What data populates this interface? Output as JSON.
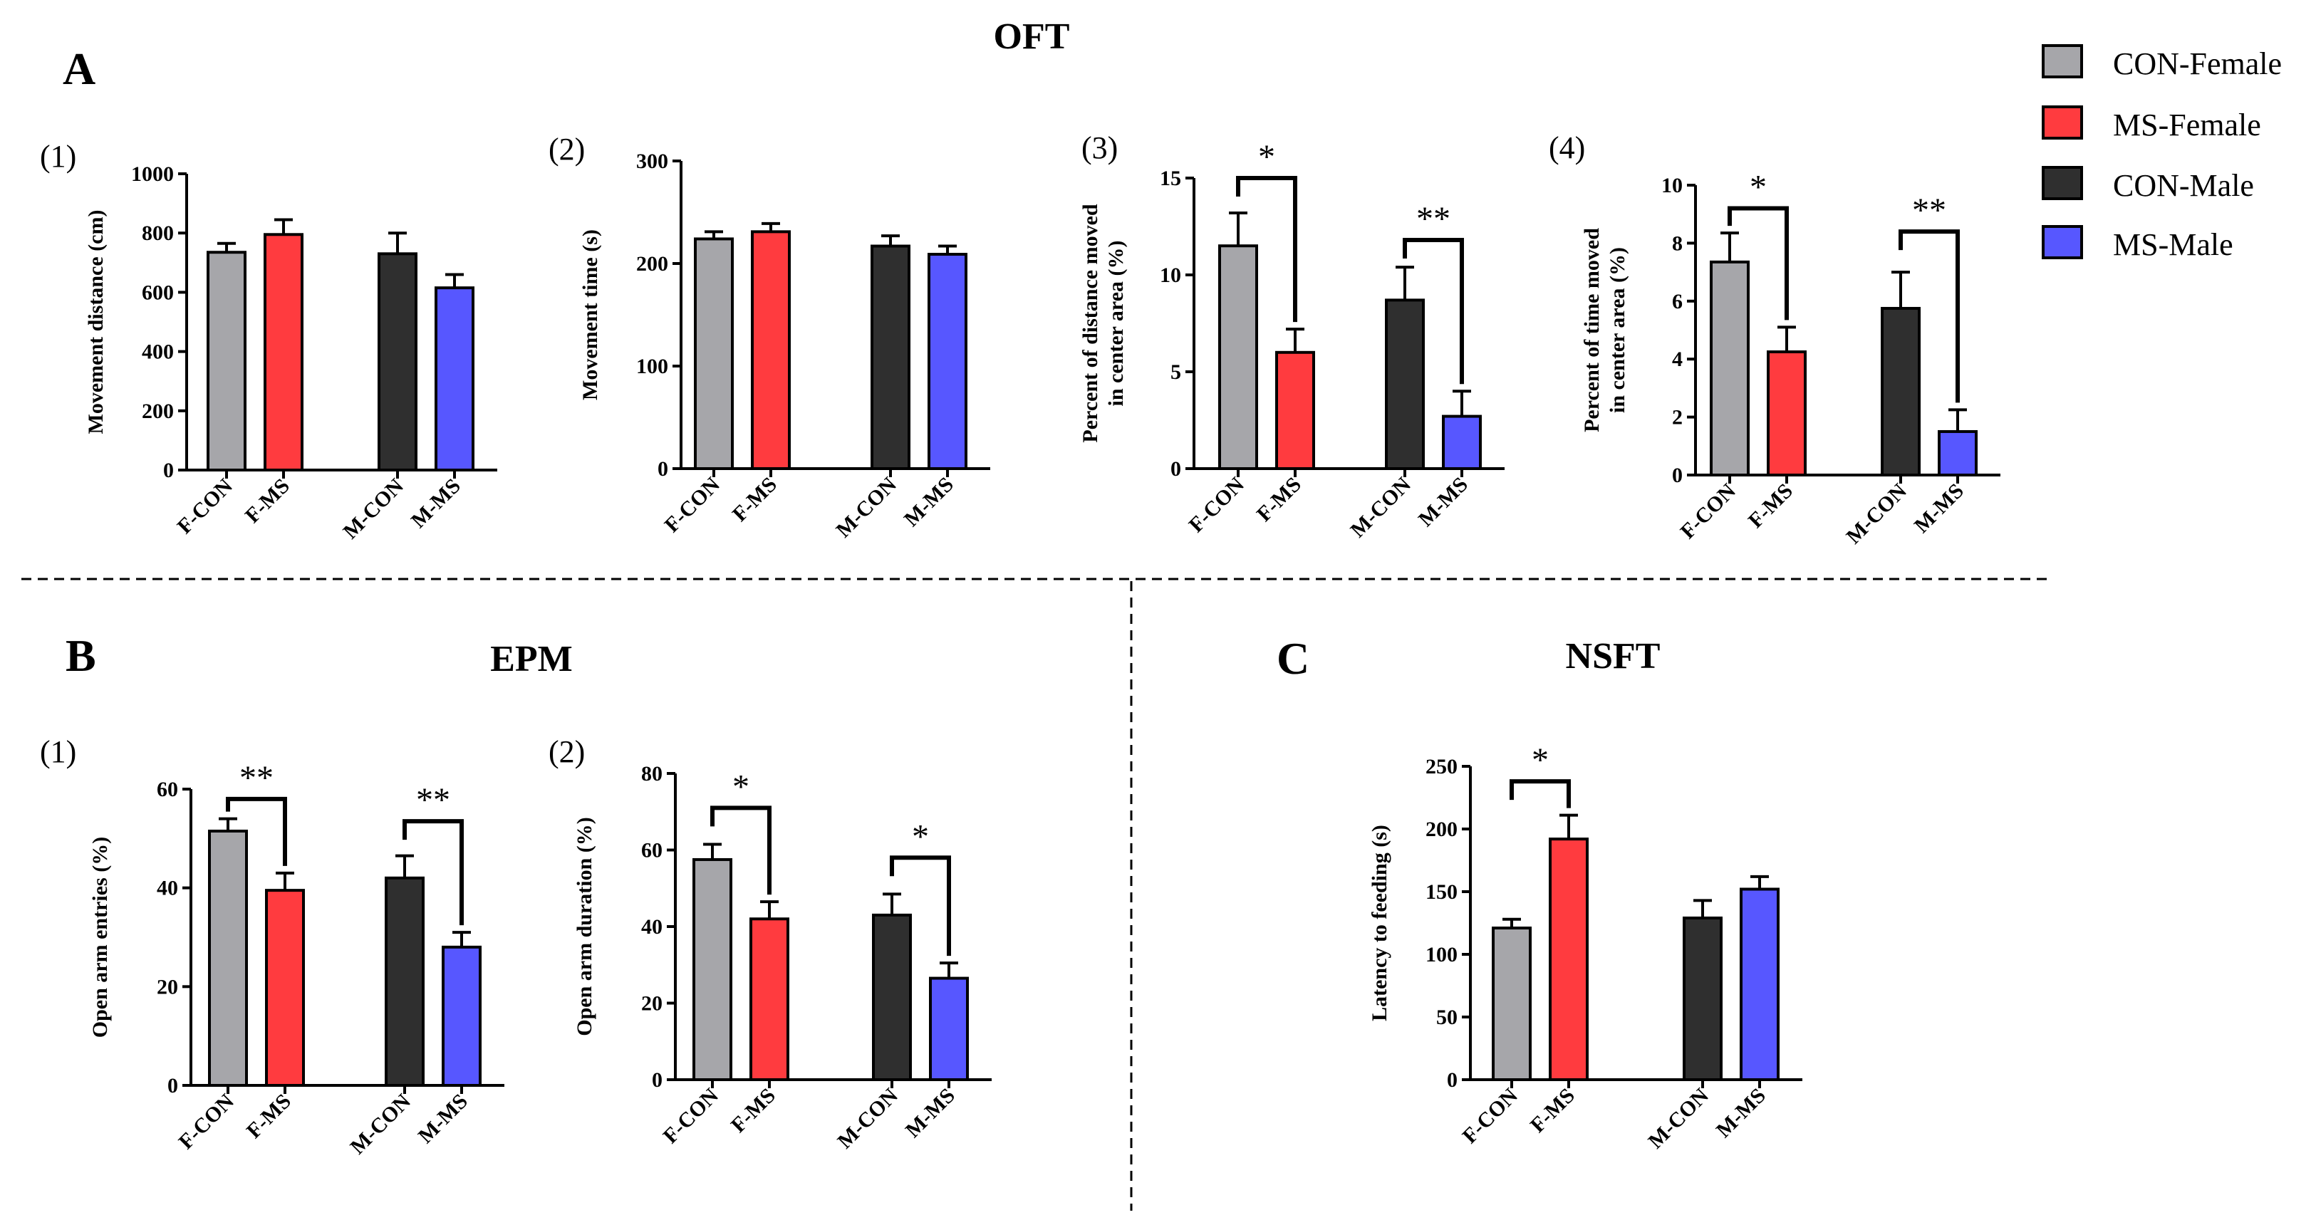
{
  "figure": {
    "sections": {
      "A": {
        "letter": "A",
        "title": "OFT"
      },
      "B": {
        "letter": "B",
        "title": "EPM"
      },
      "C": {
        "letter": "C",
        "title": "NSFT"
      }
    },
    "legend": [
      {
        "label": "CON-Female",
        "color": "#a6a6aa"
      },
      {
        "label": "MS-Female",
        "color": "#ff3b3f"
      },
      {
        "label": "CON-Male",
        "color": "#2f2f2f"
      },
      {
        "label": "MS-Male",
        "color": "#5757ff"
      }
    ]
  },
  "chart_data": [
    {
      "id": "oft1",
      "panel_label": "(1)",
      "type": "bar",
      "ylabel": [
        "Movement distance (cm)"
      ],
      "categories": [
        "F-CON",
        "F-MS",
        "M-CON",
        "M-MS"
      ],
      "values": [
        735,
        795,
        730,
        615
      ],
      "errors": [
        30,
        50,
        70,
        45
      ],
      "ylim": [
        0,
        1000
      ],
      "yticks": [
        0,
        200,
        400,
        600,
        800,
        1000
      ],
      "significance": []
    },
    {
      "id": "oft2",
      "panel_label": "(2)",
      "type": "bar",
      "ylabel": [
        "Movement time (s)"
      ],
      "categories": [
        "F-CON",
        "F-MS",
        "M-CON",
        "M-MS"
      ],
      "values": [
        224,
        231,
        217,
        209
      ],
      "errors": [
        7,
        8,
        10,
        8
      ],
      "ylim": [
        0,
        300
      ],
      "yticks": [
        0,
        100,
        200,
        300
      ],
      "significance": []
    },
    {
      "id": "oft3",
      "panel_label": "(3)",
      "type": "bar",
      "ylabel": [
        "Percent of distance moved",
        "in center area (%)"
      ],
      "categories": [
        "F-CON",
        "F-MS",
        "M-CON",
        "M-MS"
      ],
      "values": [
        11.5,
        6.0,
        8.7,
        2.7
      ],
      "errors": [
        1.7,
        1.2,
        1.7,
        1.3
      ],
      "ylim": [
        0,
        15
      ],
      "yticks": [
        0,
        5,
        10,
        15
      ],
      "significance": [
        {
          "from": 0,
          "to": 1,
          "y": 15.0,
          "label": "*"
        },
        {
          "from": 2,
          "to": 3,
          "y": 11.8,
          "label": "**"
        }
      ]
    },
    {
      "id": "oft4",
      "panel_label": "(4)",
      "type": "bar",
      "ylabel": [
        "Percent of time moved",
        "in center area (%)"
      ],
      "categories": [
        "F-CON",
        "F-MS",
        "M-CON",
        "M-MS"
      ],
      "values": [
        7.35,
        4.25,
        5.75,
        1.5
      ],
      "errors": [
        1.0,
        0.85,
        1.25,
        0.75
      ],
      "ylim": [
        0,
        10
      ],
      "yticks": [
        0,
        2,
        4,
        6,
        8,
        10
      ],
      "significance": [
        {
          "from": 0,
          "to": 1,
          "y": 9.2,
          "label": "*"
        },
        {
          "from": 2,
          "to": 3,
          "y": 8.4,
          "label": "**"
        }
      ]
    },
    {
      "id": "epm1",
      "panel_label": "(1)",
      "type": "bar",
      "ylabel": [
        "Open arm entries (%)"
      ],
      "categories": [
        "F-CON",
        "F-MS",
        "M-CON",
        "M-MS"
      ],
      "values": [
        51.5,
        39.5,
        42.0,
        28.0
      ],
      "errors": [
        2.5,
        3.5,
        4.5,
        3.0
      ],
      "ylim": [
        0,
        60
      ],
      "yticks": [
        0,
        20,
        40,
        60
      ],
      "significance": [
        {
          "from": 0,
          "to": 1,
          "y": 58.0,
          "label": "**"
        },
        {
          "from": 2,
          "to": 3,
          "y": 53.5,
          "label": "**"
        }
      ]
    },
    {
      "id": "epm2",
      "panel_label": "(2)",
      "type": "bar",
      "ylabel": [
        "Open arm duration (%)"
      ],
      "categories": [
        "F-CON",
        "F-MS",
        "M-CON",
        "M-MS"
      ],
      "values": [
        57.5,
        42.0,
        43.0,
        26.5
      ],
      "errors": [
        4.0,
        4.5,
        5.5,
        4.0
      ],
      "ylim": [
        0,
        80
      ],
      "yticks": [
        0,
        20,
        40,
        60,
        80
      ],
      "significance": [
        {
          "from": 0,
          "to": 1,
          "y": 71.0,
          "label": "*"
        },
        {
          "from": 2,
          "to": 3,
          "y": 58.0,
          "label": "*"
        }
      ]
    },
    {
      "id": "nsft",
      "panel_label": "",
      "type": "bar",
      "ylabel": [
        "Latency to feeding (s)"
      ],
      "categories": [
        "F-CON",
        "F-MS",
        "M-CON",
        "M-MS"
      ],
      "values": [
        121,
        192,
        129,
        152
      ],
      "errors": [
        7,
        19,
        14,
        10
      ],
      "ylim": [
        0,
        250
      ],
      "yticks": [
        0,
        50,
        100,
        150,
        200,
        250
      ],
      "significance": [
        {
          "from": 0,
          "to": 1,
          "y": 238,
          "label": "*"
        }
      ]
    }
  ]
}
